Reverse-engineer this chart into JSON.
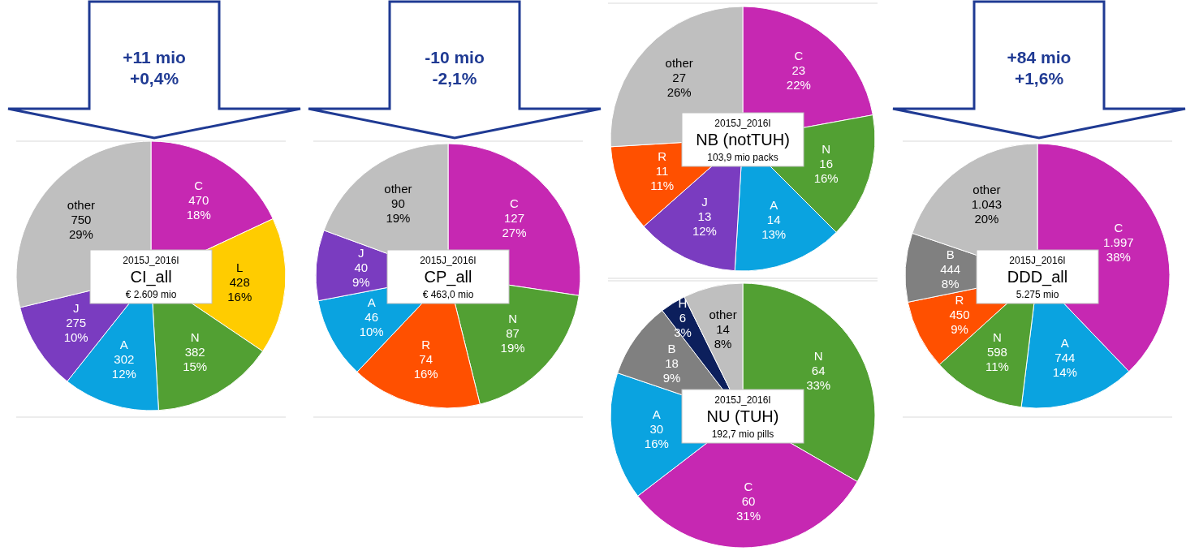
{
  "chart_data": [
    {
      "type": "pie",
      "subtitle": "2015J_2016I",
      "title": "CI_all",
      "annotations": [
        "€ 2.609 mio",
        "+11 mio",
        "+0,4%"
      ],
      "categories": [
        "C",
        "L",
        "N",
        "A",
        "J",
        "other"
      ],
      "values": [
        470,
        428,
        382,
        302,
        275,
        750
      ],
      "value_labels": [
        "470\n18%",
        "428\n16%",
        "382\n15%",
        "302\n12%",
        "275\n10%",
        "750\n29%"
      ],
      "colors": [
        "#c628b2",
        "#ffcc00",
        "#52a033",
        "#0aa3e0",
        "#7a3cc0",
        "#bfbfbf"
      ]
    },
    {
      "type": "pie",
      "subtitle": "2015J_2016I",
      "title": "CP_all",
      "annotations": [
        "€ 463,0 mio",
        "-10 mio",
        "-2,1%"
      ],
      "categories": [
        "C",
        "N",
        "R",
        "A",
        "J",
        "other"
      ],
      "values": [
        127,
        87,
        74,
        46,
        40,
        90
      ],
      "value_labels": [
        "127\n27%",
        "87\n19%",
        "74\n16%",
        "46\n10%",
        "40\n9%",
        "90\n19%"
      ],
      "colors": [
        "#c628b2",
        "#52a033",
        "#ff5000",
        "#0aa3e0",
        "#7a3cc0",
        "#bfbfbf"
      ]
    },
    {
      "type": "pie",
      "subtitle": "2015J_2016I",
      "title": "NB (notTUH)",
      "annotations": [
        "103,9 mio packs"
      ],
      "categories": [
        "C",
        "N",
        "A",
        "J",
        "R",
        "other"
      ],
      "values": [
        23,
        16,
        14,
        13,
        11,
        27
      ],
      "value_labels": [
        "23\n22%",
        "16\n16%",
        "14\n13%",
        "13\n12%",
        "11\n11%",
        "27\n26%"
      ],
      "colors": [
        "#c628b2",
        "#52a033",
        "#0aa3e0",
        "#7a3cc0",
        "#ff5000",
        "#bfbfbf"
      ]
    },
    {
      "type": "pie",
      "subtitle": "2015J_2016I",
      "title": "NU (TUH)",
      "annotations": [
        "192,7 mio pills"
      ],
      "categories": [
        "N",
        "C",
        "A",
        "B",
        "H",
        "other"
      ],
      "values": [
        64,
        60,
        30,
        18,
        6,
        14
      ],
      "value_labels": [
        "64\n33%",
        "60\n31%",
        "30\n16%",
        "18\n9%",
        "6\n3%",
        "14\n8%"
      ],
      "colors": [
        "#52a033",
        "#c628b2",
        "#0aa3e0",
        "#808080",
        "#0c1f5c",
        "#bfbfbf"
      ]
    },
    {
      "type": "pie",
      "subtitle": "2015J_2016I",
      "title": "DDD_all",
      "annotations": [
        "5.275 mio",
        "+84 mio",
        "+1,6%"
      ],
      "categories": [
        "C",
        "A",
        "N",
        "R",
        "B",
        "other"
      ],
      "values": [
        1997,
        744,
        598,
        450,
        444,
        1043
      ],
      "value_labels": [
        "1.997\n38%",
        "744\n14%",
        "598\n11%",
        "450\n9%",
        "444\n8%",
        "1.043\n20%"
      ],
      "colors": [
        "#c628b2",
        "#0aa3e0",
        "#52a033",
        "#ff5000",
        "#808080",
        "#bfbfbf"
      ]
    }
  ]
}
